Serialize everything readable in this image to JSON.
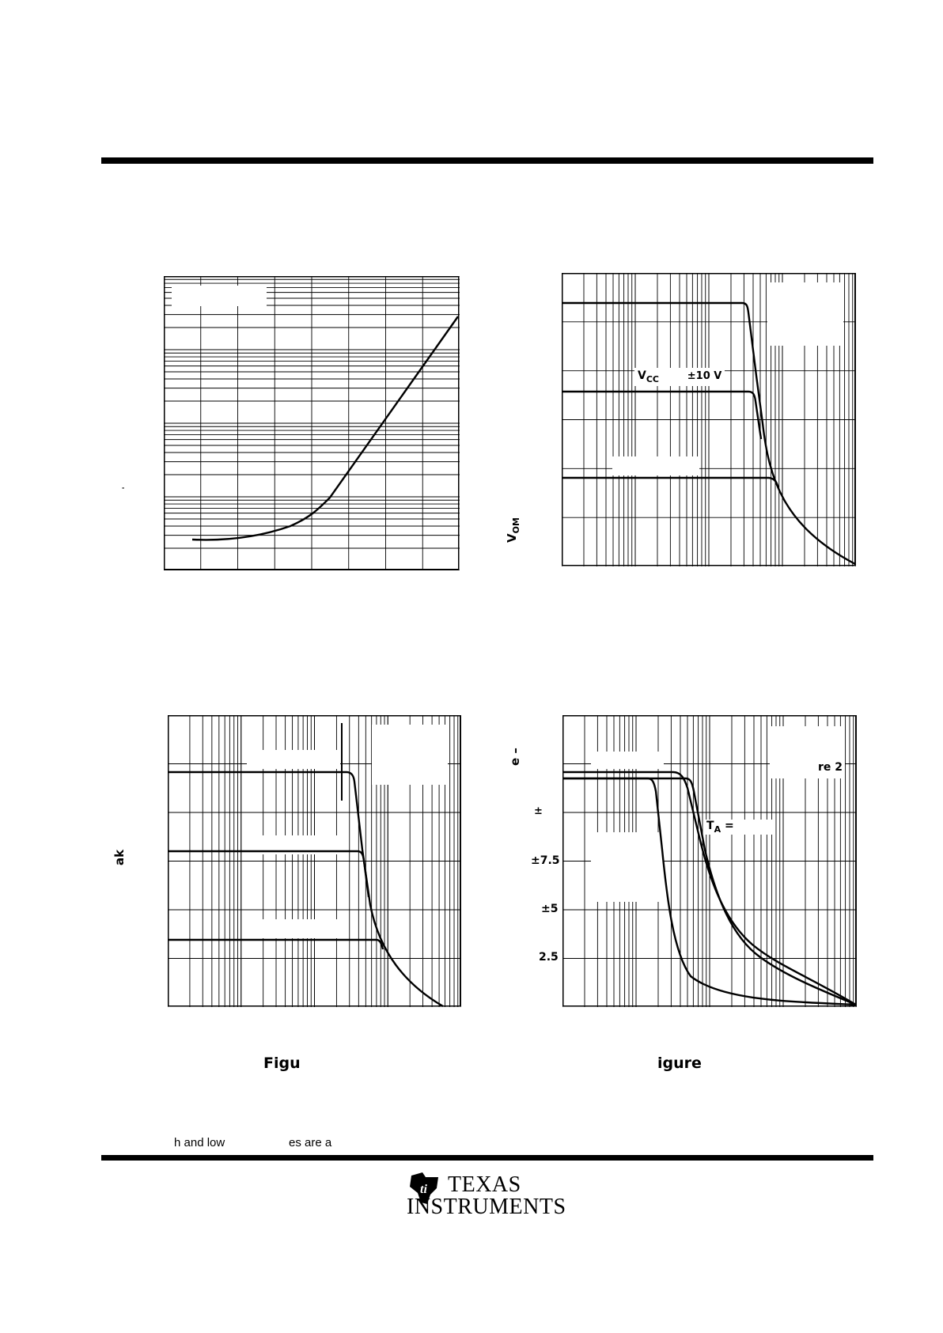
{
  "labels": {
    "vcc_label": "V",
    "vcc_sub": "CC",
    "vcc_value": "±10 V",
    "vom_label": "V",
    "vom_sub": "OM",
    "ak_label": "ak",
    "e_label": "e –",
    "re2_label": "re 2",
    "ta_label": "T",
    "ta_sub": "A",
    "ta_eq": " =",
    "pm_label": "±",
    "y_75": "±7.5",
    "y_5": "±5",
    "y_25": "2.5"
  },
  "captions": {
    "left": "Figu",
    "right": "igure"
  },
  "footnote": {
    "part1": "h and low",
    "part2": "es are a"
  },
  "logo": {
    "line1": "TEXAS",
    "line2": "INSTRUMENTS"
  }
}
